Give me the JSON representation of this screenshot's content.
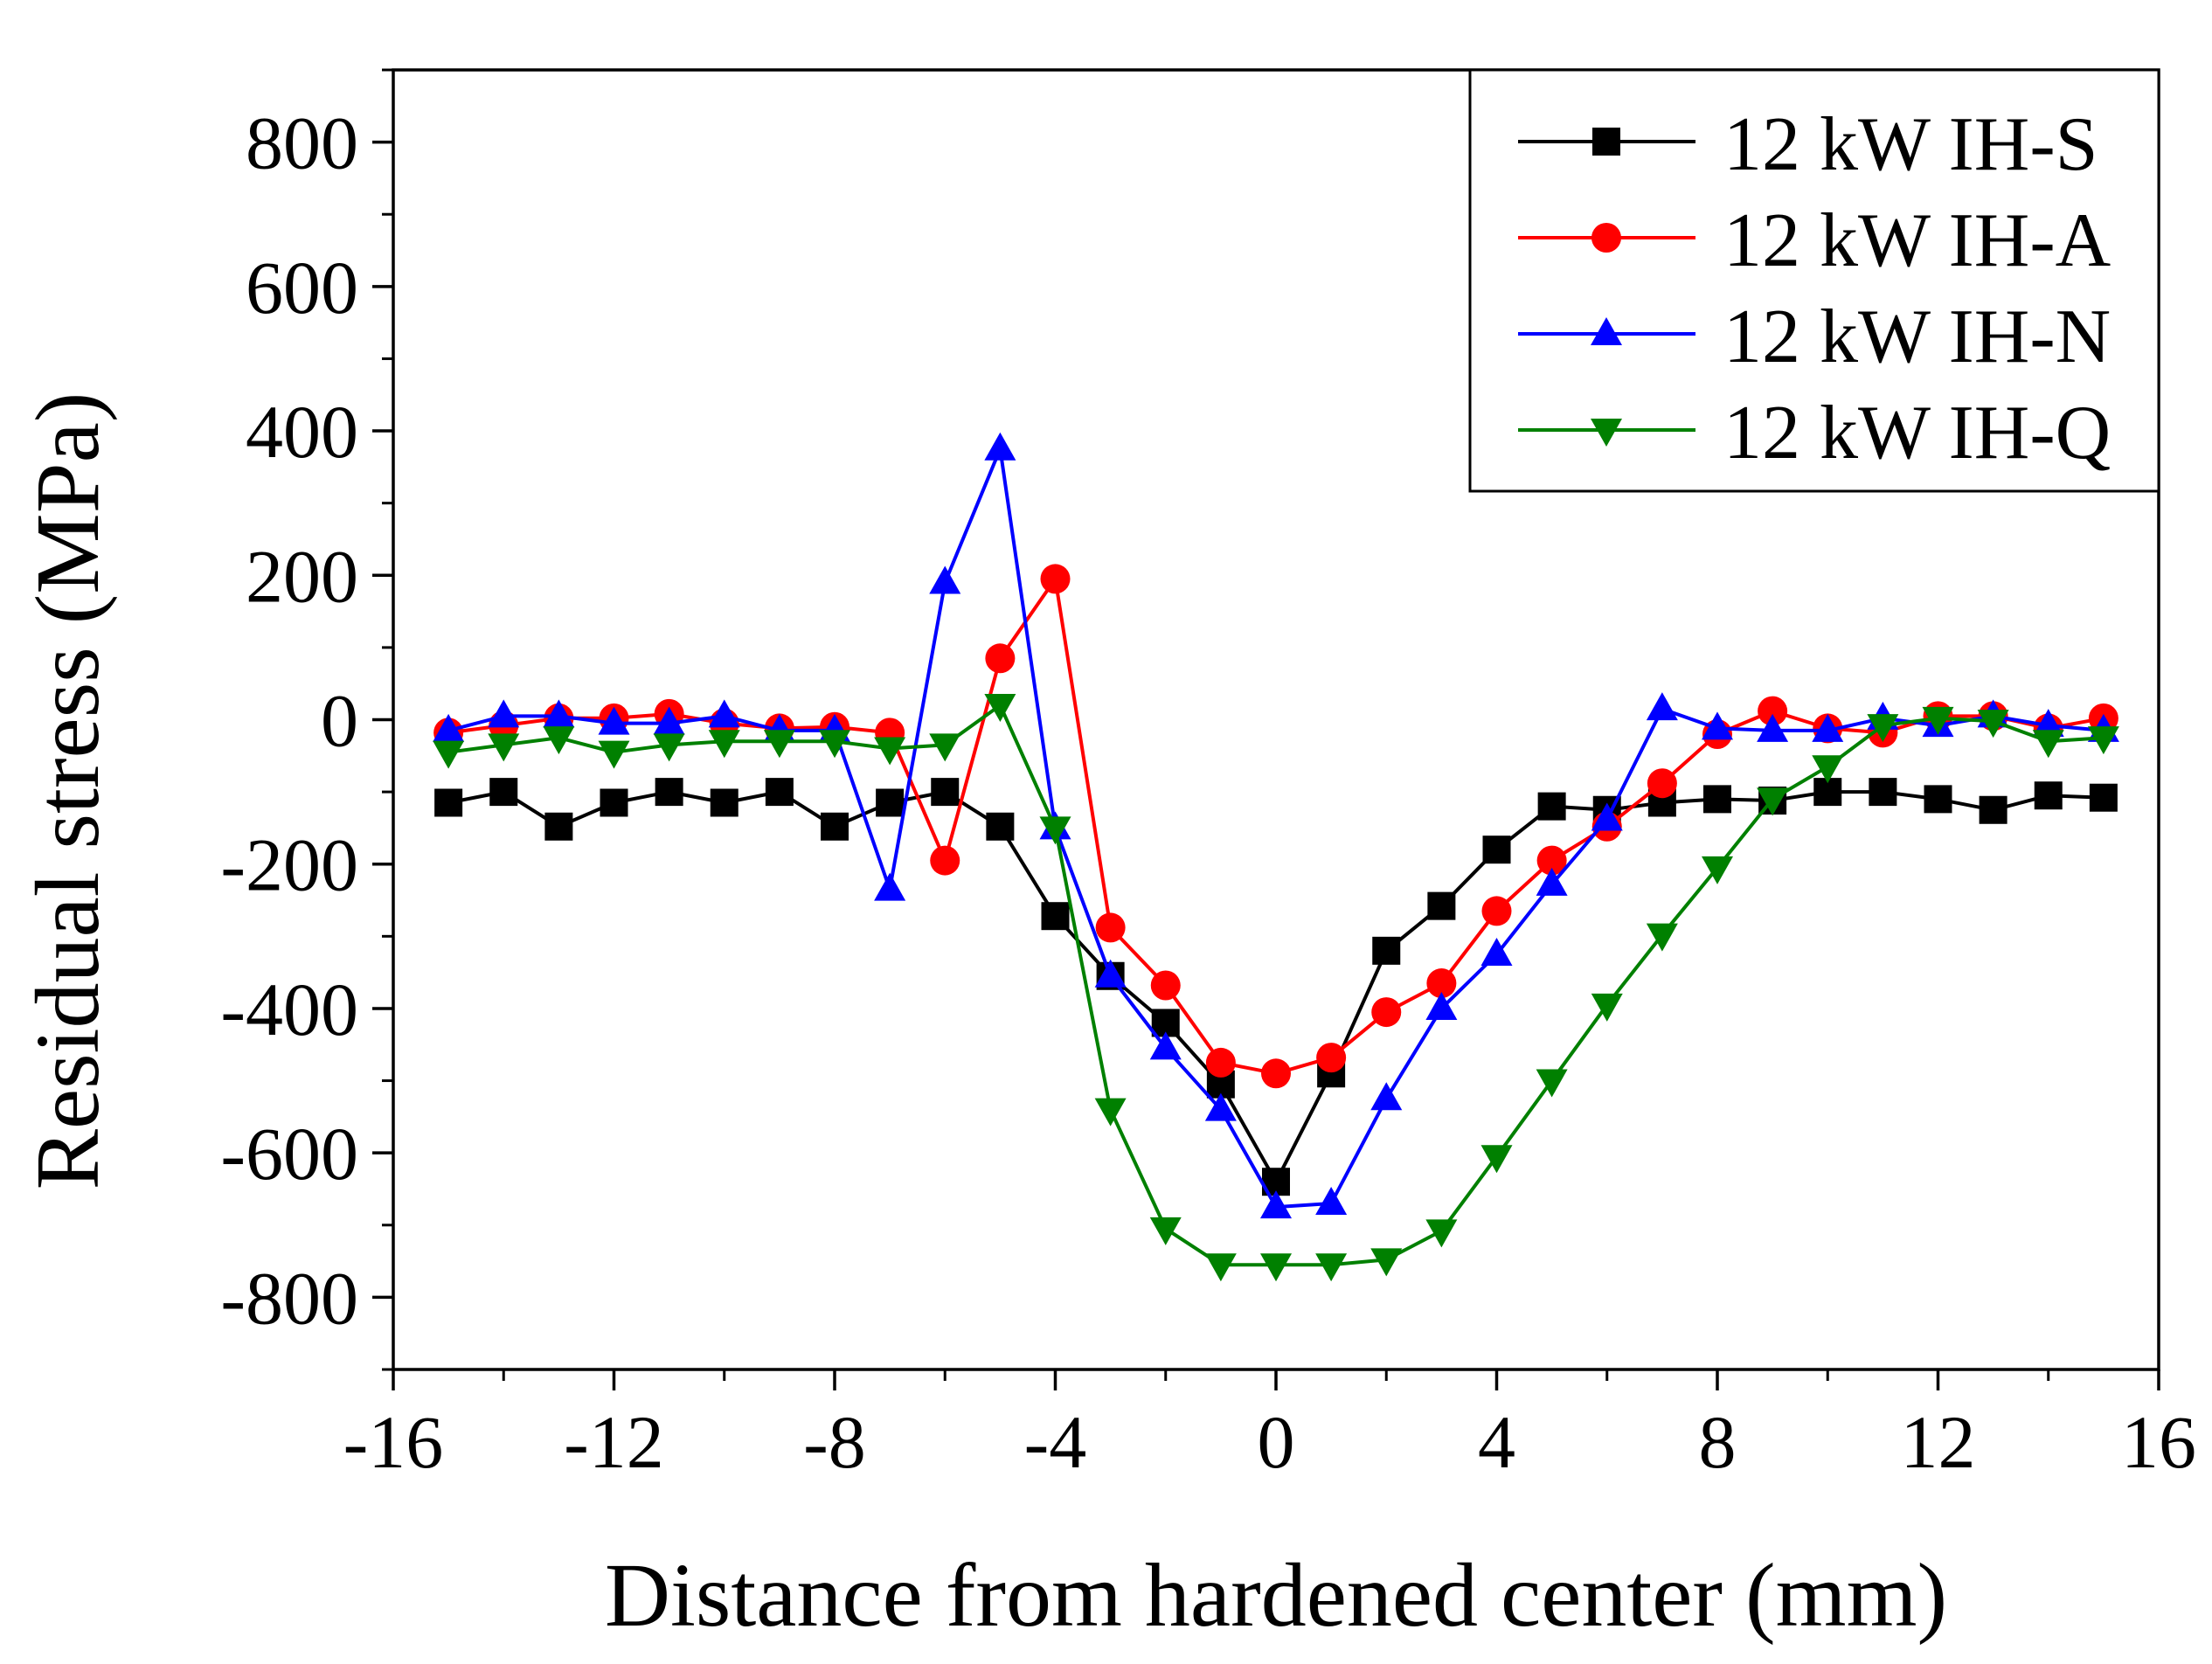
{
  "chart_data": {
    "type": "line",
    "title": "",
    "xlabel": "Distance from hardened center (mm)",
    "ylabel": "Residual stress (MPa)",
    "xlim": [
      -16,
      16
    ],
    "ylim": [
      -900,
      900
    ],
    "x_ticks": [
      -16,
      -12,
      -8,
      -4,
      0,
      4,
      8,
      12,
      16
    ],
    "x_tick_labels": [
      "-16",
      "-12",
      "-8",
      "-4",
      "0",
      "4",
      "8",
      "12",
      "16"
    ],
    "y_ticks": [
      -800,
      -600,
      -400,
      -200,
      0,
      200,
      400,
      600,
      800
    ],
    "y_tick_labels": [
      "-800",
      "-600",
      "-400",
      "-200",
      "0",
      "200",
      "400",
      "600",
      "800"
    ],
    "grid": false,
    "legend_position": "top-right",
    "x": [
      -15,
      -14,
      -13,
      -12,
      -11,
      -10,
      -9,
      -8,
      -7,
      -6,
      -5,
      -4,
      -3,
      -2,
      -1,
      0,
      1,
      2,
      3,
      4,
      5,
      6,
      7,
      8,
      9,
      10,
      11,
      12,
      13,
      14,
      15
    ],
    "series": [
      {
        "name": "12 kW IH-S",
        "color": "#000000",
        "marker": "square",
        "values": [
          -115,
          -100,
          -148,
          -115,
          -100,
          -115,
          -100,
          -148,
          -115,
          -100,
          -148,
          -272,
          -355,
          -420,
          -505,
          -640,
          -490,
          -320,
          -258,
          -180,
          -120,
          -125,
          -115,
          -110,
          -112,
          -100,
          -100,
          -110,
          -125,
          -105,
          -108
        ]
      },
      {
        "name": "12 kW IH-A",
        "color": "#ff0000",
        "marker": "circle",
        "values": [
          -18,
          -8,
          2,
          2,
          8,
          -5,
          -12,
          -10,
          -18,
          -195,
          85,
          195,
          -288,
          -368,
          -475,
          -490,
          -468,
          -405,
          -365,
          -265,
          -195,
          -148,
          -88,
          -20,
          12,
          -12,
          -18,
          5,
          5,
          -12,
          2
        ]
      },
      {
        "name": "12 kW IH-N",
        "color": "#0000ff",
        "marker": "triangle-up",
        "values": [
          -15,
          5,
          5,
          -5,
          -5,
          5,
          -15,
          -15,
          -235,
          190,
          375,
          -150,
          -355,
          -455,
          -540,
          -675,
          -670,
          -525,
          -400,
          -325,
          -228,
          -138,
          15,
          -12,
          -15,
          -15,
          2,
          -8,
          5,
          -8,
          -15
        ]
      },
      {
        "name": "12 kW IH-Q",
        "color": "#008000",
        "marker": "triangle-down",
        "values": [
          -45,
          -35,
          -25,
          -45,
          -35,
          -30,
          -30,
          -30,
          -40,
          -35,
          20,
          -150,
          -540,
          -705,
          -755,
          -755,
          -755,
          -748,
          -708,
          -605,
          -500,
          -395,
          -298,
          -205,
          -110,
          -65,
          -8,
          2,
          -2,
          -30,
          -25
        ]
      }
    ]
  }
}
